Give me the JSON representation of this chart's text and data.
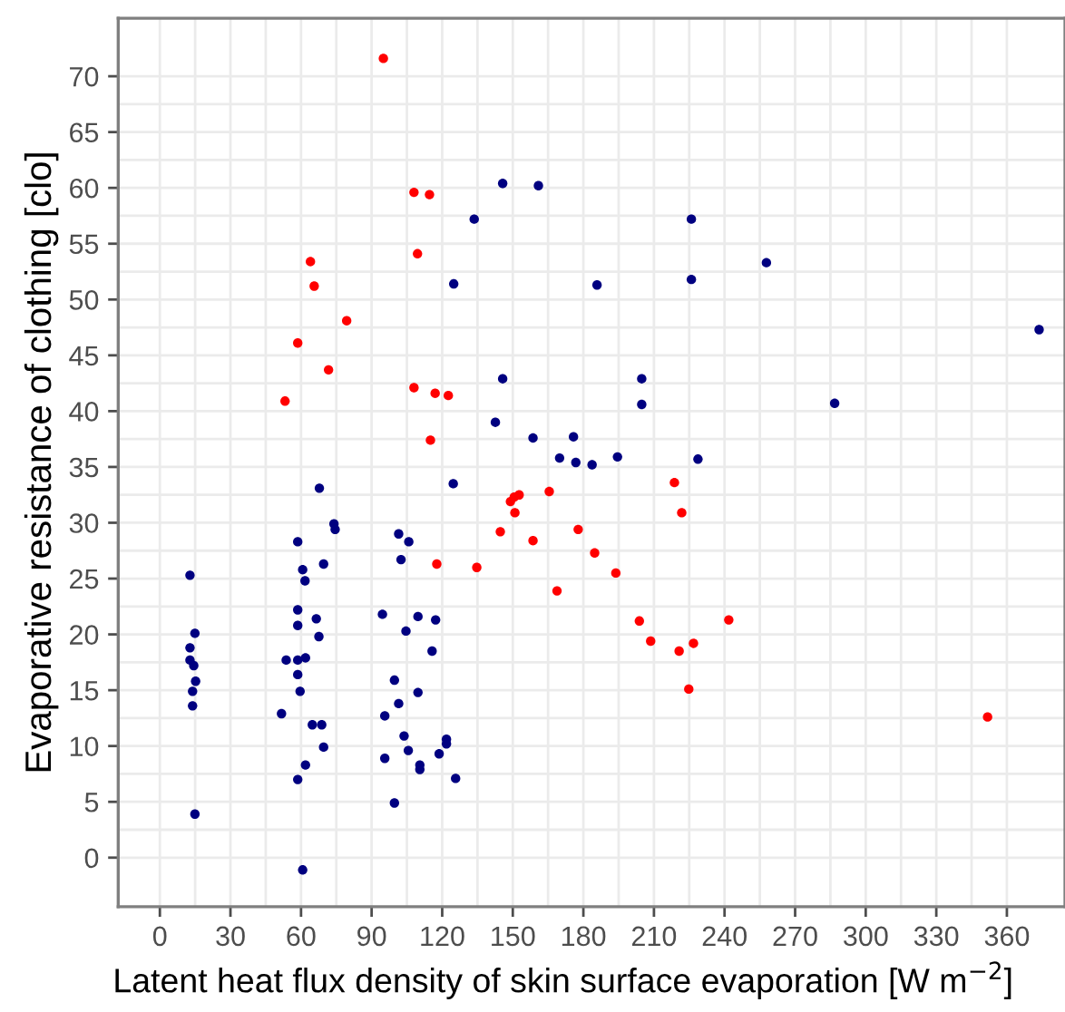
{
  "chart_data": {
    "type": "scatter",
    "xlabel": "Latent heat flux density of skin surface evaporation [W m$^{−2}$]",
    "ylabel": "Evaporative resistance of clothing [clo]",
    "xlim": [
      -17.7,
      384.7
    ],
    "ylim": [
      -4.4,
      75.2
    ],
    "xticks": [
      0,
      30,
      60,
      90,
      120,
      150,
      180,
      210,
      240,
      270,
      300,
      330,
      360
    ],
    "yticks": [
      0,
      5,
      10,
      15,
      20,
      25,
      30,
      35,
      40,
      45,
      50,
      55,
      60,
      65,
      70
    ],
    "grid": true,
    "marker": "circle",
    "legend": false,
    "series": [
      {
        "color": "#ff0000",
        "x": [
          95,
          108,
          114.6,
          109.5,
          64,
          65.6,
          79.4,
          58.6,
          71.7,
          108,
          117,
          122.6,
          53.2,
          115,
          218.7,
          149,
          149.8,
          150.6,
          152.7,
          150.9,
          165.5,
          221.8,
          144.7,
          177.8,
          158.6,
          184.8,
          134.7,
          193.8,
          168.8,
          203.8,
          241.8,
          208.6,
          220.7,
          226.8,
          224.8,
          117.7,
          351.8
        ],
        "values": [
          71.6,
          59.6,
          59.4,
          54.1,
          53.4,
          51.2,
          48.1,
          46.1,
          43.7,
          42.1,
          41.6,
          41.4,
          40.9,
          37.4,
          33.6,
          31.9,
          null,
          32.3,
          32.5,
          30.9,
          32.8,
          30.9,
          29.2,
          29.4,
          28.4,
          27.3,
          26.0,
          25.5,
          23.9,
          21.2,
          21.3,
          19.4,
          18.5,
          19.2,
          15.1,
          26.3,
          12.6
        ]
      },
      {
        "color": "#000080",
        "x": [
          12.8,
          14.9,
          12.8,
          12.8,
          14.4,
          15.2,
          13.9,
          13.9,
          14.9,
          67.8,
          74.0,
          74.5,
          58.6,
          69.6,
          60.7,
          61.7,
          58.6,
          66.5,
          58.6,
          67.6,
          53.7,
          58.6,
          61.9,
          58.6,
          59.6,
          51.7,
          64.8,
          68.8,
          69.6,
          61.9,
          58.6,
          60.7,
          124.7,
          101.5,
          105.8,
          102.5,
          94.6,
          109.7,
          117.2,
          104.6,
          115.7,
          99.7,
          109.7,
          101.5,
          95.6,
          103.8,
          121.8,
          121.8,
          105.6,
          118.7,
          95.6,
          110.5,
          110.5,
          125.7,
          99.7,
          145.7,
          160.9,
          133.6,
          225.9,
          257.8,
          124.9,
          185.8,
          225.9,
          145.7,
          204.8,
          204.8,
          142.6,
          158.6,
          175.8,
          169.9,
          176.8,
          183.7,
          194.5,
          228.7,
          286.8,
          373.7
        ],
        "values": [
          25.3,
          20.1,
          18.8,
          17.7,
          17.2,
          15.8,
          14.9,
          13.6,
          3.9,
          33.1,
          29.9,
          29.4,
          28.3,
          26.3,
          25.8,
          24.8,
          22.2,
          21.4,
          20.8,
          19.8,
          17.7,
          17.7,
          17.9,
          16.4,
          14.9,
          12.9,
          11.9,
          11.9,
          9.9,
          8.3,
          7.0,
          -1.1,
          33.5,
          29.0,
          28.3,
          26.7,
          21.8,
          21.6,
          21.3,
          20.3,
          18.5,
          15.9,
          14.8,
          13.8,
          12.7,
          10.9,
          10.6,
          10.2,
          9.6,
          9.3,
          8.9,
          8.3,
          7.9,
          7.1,
          4.9,
          60.4,
          60.2,
          57.2,
          57.2,
          53.3,
          51.4,
          51.3,
          51.8,
          42.9,
          42.9,
          40.6,
          39.0,
          37.6,
          37.7,
          35.8,
          35.4,
          35.2,
          35.9,
          35.7,
          40.7,
          47.3
        ]
      }
    ]
  }
}
